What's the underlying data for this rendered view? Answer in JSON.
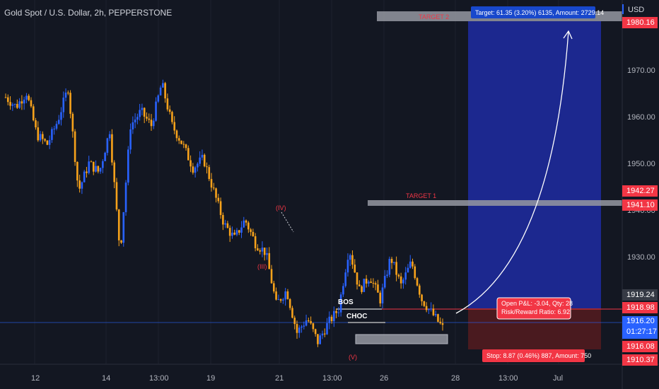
{
  "title": "Gold Spot / U.S. Dollar, 2h, PEPPERSTONE",
  "currency": "USD",
  "colors": {
    "bg": "#131722",
    "bull": "#2962ff",
    "bear": "#f7a21b",
    "target": "#1f2ca8",
    "stop": "#5c1c22",
    "red": "#f23645",
    "grey_zone": "#9598a1"
  },
  "chart_data": {
    "type": "candlestick",
    "y_ticks": [
      "1970.00",
      "1960.00",
      "1950.00",
      "1940.00",
      "1930.00"
    ],
    "x_ticks": [
      "12",
      "14",
      "13:00",
      "19",
      "21",
      "13:00",
      "26",
      "28",
      "13:00",
      "Jul"
    ],
    "ylim": [
      1908,
      1983
    ],
    "path_closes": [
      1964,
      1962,
      1965,
      1956,
      1954,
      1959,
      1966,
      1944,
      1950,
      1948,
      1957,
      1931,
      1958,
      1961,
      1958,
      1967,
      1958,
      1954,
      1949,
      1951,
      1944,
      1937,
      1934,
      1938,
      1933,
      1931,
      1920,
      1923,
      1914,
      1917,
      1912,
      1916,
      1919,
      1932,
      1923,
      1926,
      1921,
      1930,
      1924,
      1929,
      1921,
      1918,
      1915
    ],
    "price_labels": [
      {
        "value": 1980.16,
        "text": "1980.16",
        "color": "#f23645"
      },
      {
        "value": 1942.27,
        "text": "1942.27",
        "color": "#f23645"
      },
      {
        "value": 1941.1,
        "text": "1941.10",
        "color": "#f23645"
      },
      {
        "value": 1919.24,
        "text": "1919.24",
        "color": "#363a45"
      },
      {
        "value": 1918.98,
        "text": "1918.98",
        "color": "#f23645"
      },
      {
        "value": 1916.08,
        "text": "1916.08",
        "color": "#f23645"
      },
      {
        "value": 1910.37,
        "text": "1910.37",
        "color": "#f23645"
      }
    ],
    "current": {
      "price": "1916.20",
      "countdown": "01:27:17",
      "color": "#2962ff"
    },
    "annotations": {
      "target2": "TARGET 2",
      "target1": "TARGET 1",
      "bos": "BOS",
      "choc": "CHOC",
      "wave_iii": "(III)",
      "wave_iv": "(IV)",
      "wave_v": "(V)"
    },
    "position": {
      "target_label": "Target: 61.35 (3.20%) 6135, Amount: 2729.14",
      "open_pl": "Open P&L: -3.04, Qty: 28",
      "rr": "Risk/Reward Ratio: 6.92",
      "stop_label": "Stop: 8.87 (0.46%) 887, Amount: 750"
    }
  }
}
